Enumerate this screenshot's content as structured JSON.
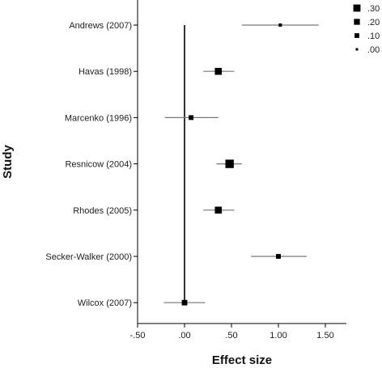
{
  "chart_data": {
    "type": "scatter",
    "xlabel": "Effect size",
    "ylabel": "Study",
    "xlim": [
      -0.5,
      1.75
    ],
    "x_ticks": [
      -0.5,
      0.0,
      0.5,
      1.0,
      1.5
    ],
    "x_tick_labels": [
      "-.50",
      ".00",
      ".50",
      "1.00",
      "1.50"
    ],
    "reference_line_x": 0.0,
    "grid": false,
    "legend": {
      "placement": "top-right",
      "title": "",
      "entries": [
        {
          "label": ".30",
          "weight": 0.3
        },
        {
          "label": ".20",
          "weight": 0.2
        },
        {
          "label": ".10",
          "weight": 0.1
        },
        {
          "label": ".00",
          "weight": 0.0
        }
      ]
    },
    "studies": [
      {
        "label": "Andrews (2007)",
        "effect": 1.02,
        "ci_low": 0.61,
        "ci_high": 1.43,
        "weight": 0.03
      },
      {
        "label": "Havas (1998)",
        "effect": 0.36,
        "ci_low": 0.2,
        "ci_high": 0.53,
        "weight": 0.2
      },
      {
        "label": "Marcenko (1996)",
        "effect": 0.07,
        "ci_low": -0.21,
        "ci_high": 0.36,
        "weight": 0.05
      },
      {
        "label": "Resnicow (2004)",
        "effect": 0.48,
        "ci_low": 0.34,
        "ci_high": 0.61,
        "weight": 0.3
      },
      {
        "label": "Rhodes (2005)",
        "effect": 0.36,
        "ci_low": 0.2,
        "ci_high": 0.53,
        "weight": 0.2
      },
      {
        "label": "Secker-Walker (2000)",
        "effect": 1.0,
        "ci_low": 0.71,
        "ci_high": 1.3,
        "weight": 0.05
      },
      {
        "label": "Wilcox (2007)",
        "effect": 0.0,
        "ci_low": -0.22,
        "ci_high": 0.22,
        "weight": 0.1
      }
    ]
  }
}
